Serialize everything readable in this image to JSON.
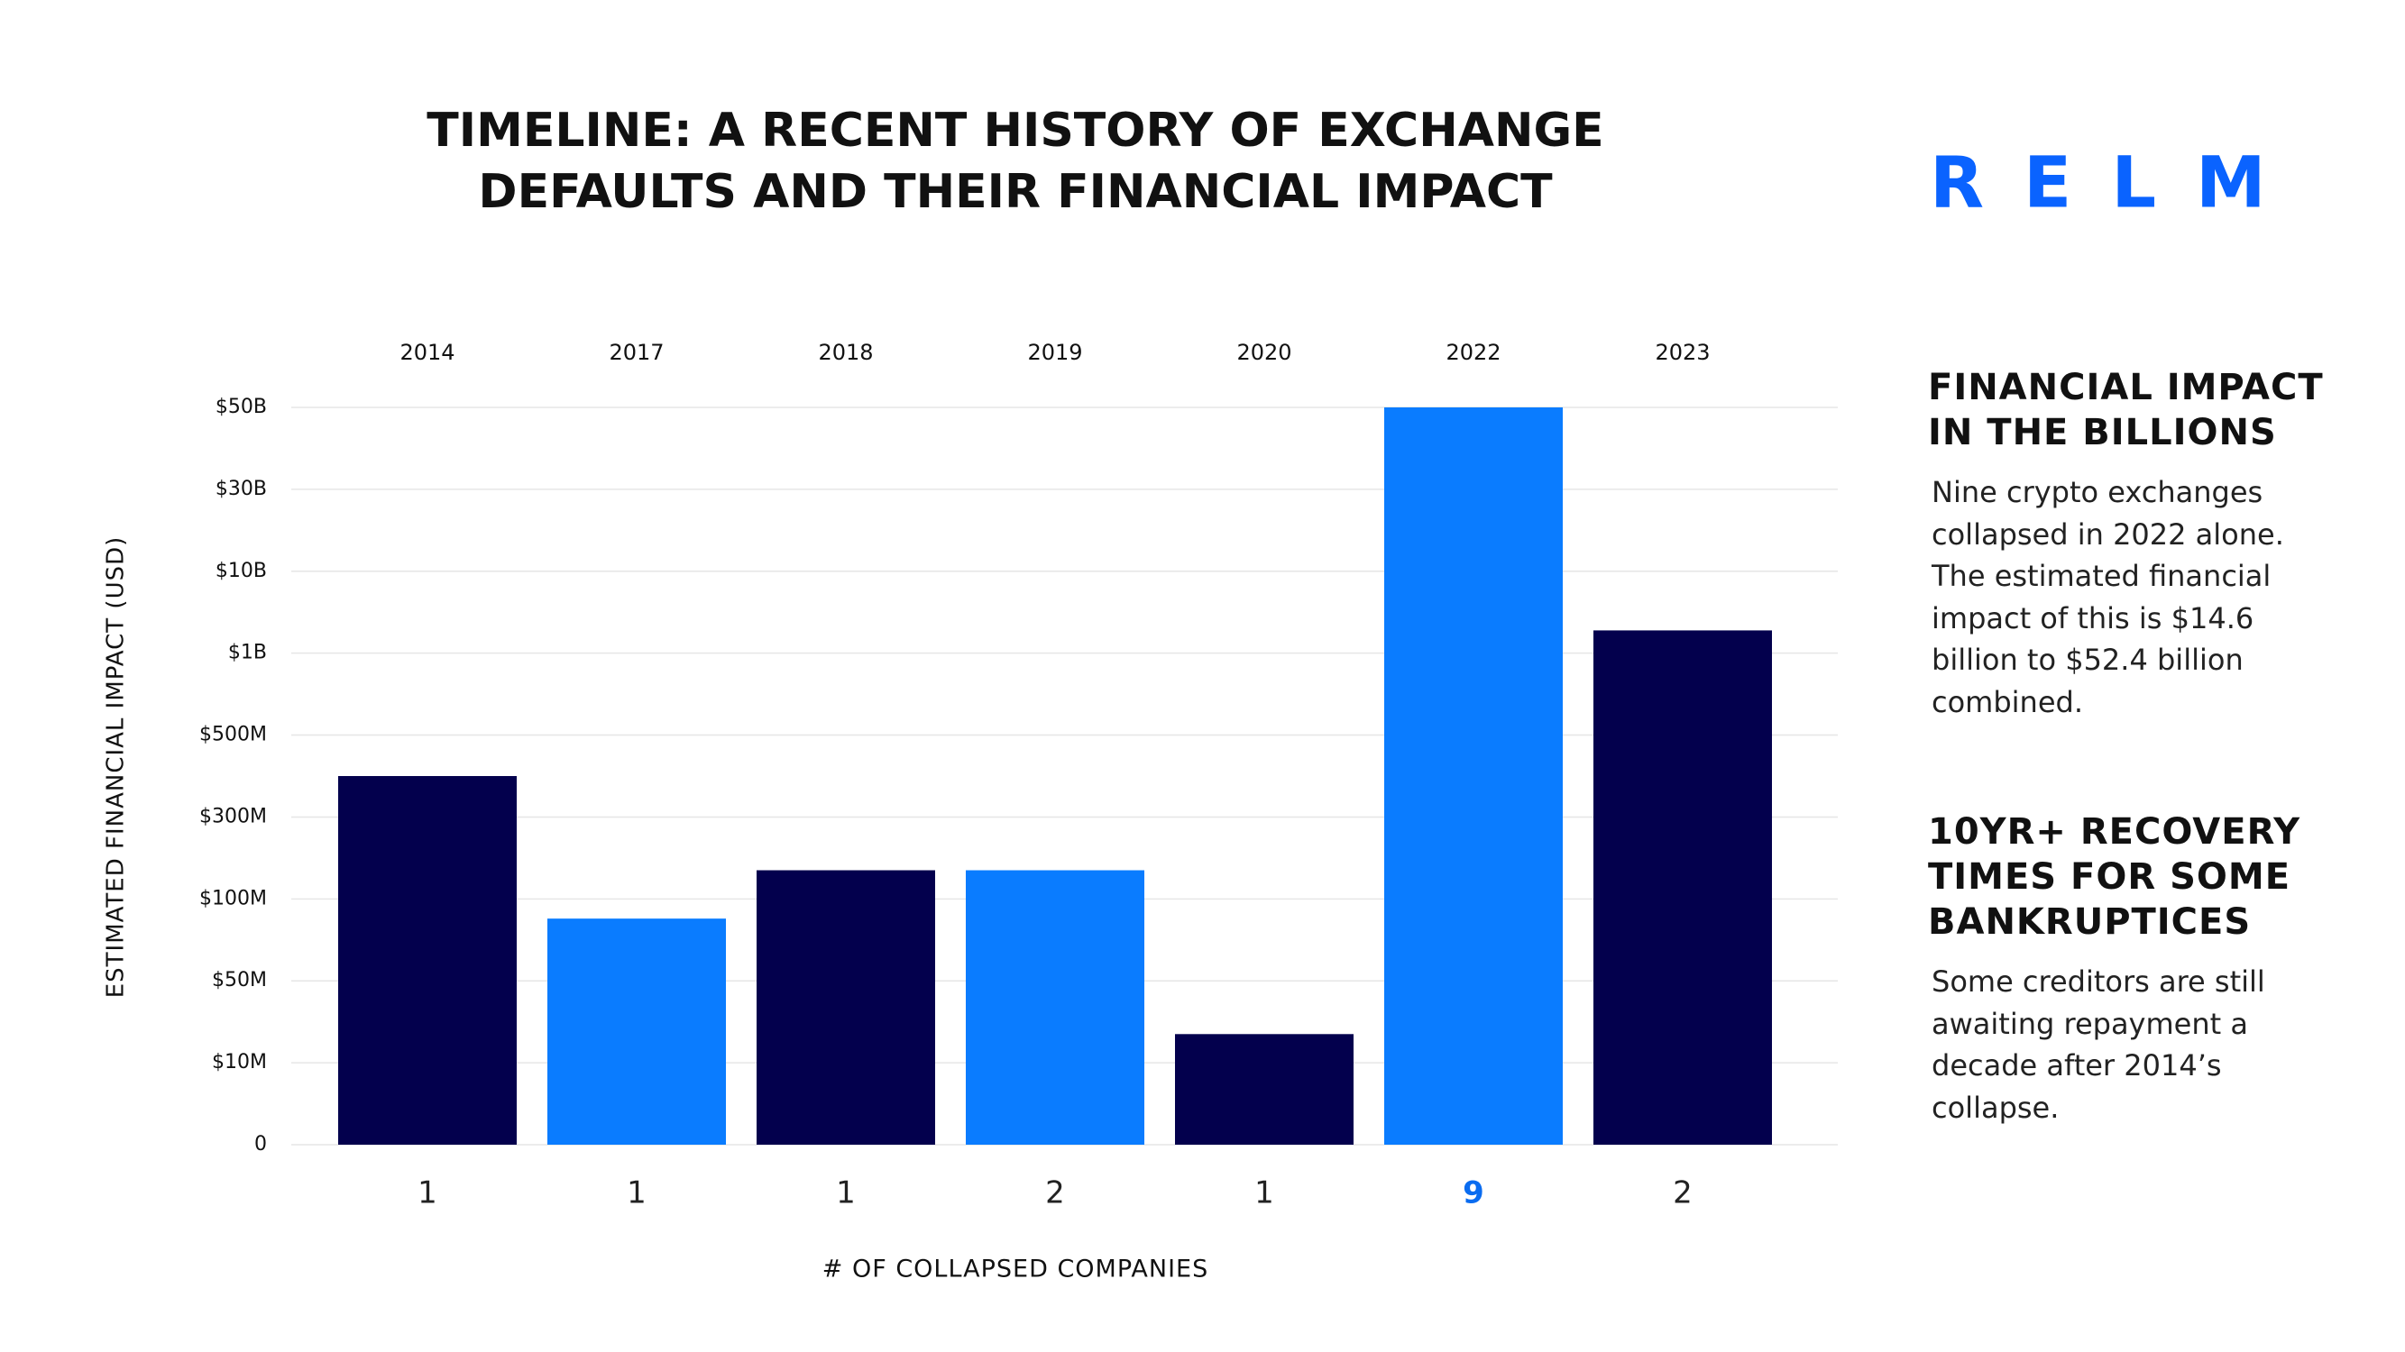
{
  "chart_data": {
    "type": "bar",
    "title": [
      "TIMELINE: A RECENT HISTORY OF EXCHANGE",
      "DEFAULTS AND THEIR FINANCIAL IMPACT"
    ],
    "categories": [
      "2014",
      "2017",
      "2018",
      "2019",
      "2020",
      "2022",
      "2023"
    ],
    "values": [
      400000000,
      88000000,
      170000000,
      170000000,
      24000000,
      50000000000,
      3500000000
    ],
    "colors": [
      "#03004d",
      "#0a7cff",
      "#03004d",
      "#0a7cff",
      "#03004d",
      "#0a7cff",
      "#03004d"
    ],
    "counts": [
      "1",
      "1",
      "1",
      "2",
      "1",
      "9",
      "2"
    ],
    "count_colors": [
      "#222222",
      "#222222",
      "#222222",
      "#222222",
      "#222222",
      "#0a6cf0",
      "#222222"
    ],
    "ylabel": "ESTIMATED FINANCIAL IMPACT (USD)",
    "xlabel": "# OF COLLAPSED COMPANIES",
    "ylim": [
      0,
      50000000000
    ],
    "yticks": [
      0,
      {
        "value": 10000000,
        "label": "$10M"
      },
      {
        "value": 50000000,
        "label": "$50M"
      },
      {
        "value": 100000000,
        "label": "$100M"
      },
      {
        "value": 300000000,
        "label": "$300M"
      },
      {
        "value": 500000000,
        "label": "$500M"
      },
      {
        "value": 1000000000,
        "label": "$1B"
      },
      {
        "value": 10000000000,
        "label": "$10B"
      },
      {
        "value": 30000000000,
        "label": "$30B"
      },
      {
        "value": 50000000000,
        "label": "$50B"
      }
    ],
    "grid": true
  },
  "logo": "RELM",
  "sidebar": [
    {
      "heading": "FINANCIAL IMPACT IN THE BILLIONS",
      "body": "Nine crypto exchanges collapsed in 2022 alone. The estimated financial impact of this is $14.6 billion to $52.4 billion combined."
    },
    {
      "heading": "10YR+ RECOVERY TIMES FOR SOME BANKRUPTICES",
      "body": "Some creditors are still awaiting repayment a decade after 2014’s collapse."
    }
  ]
}
